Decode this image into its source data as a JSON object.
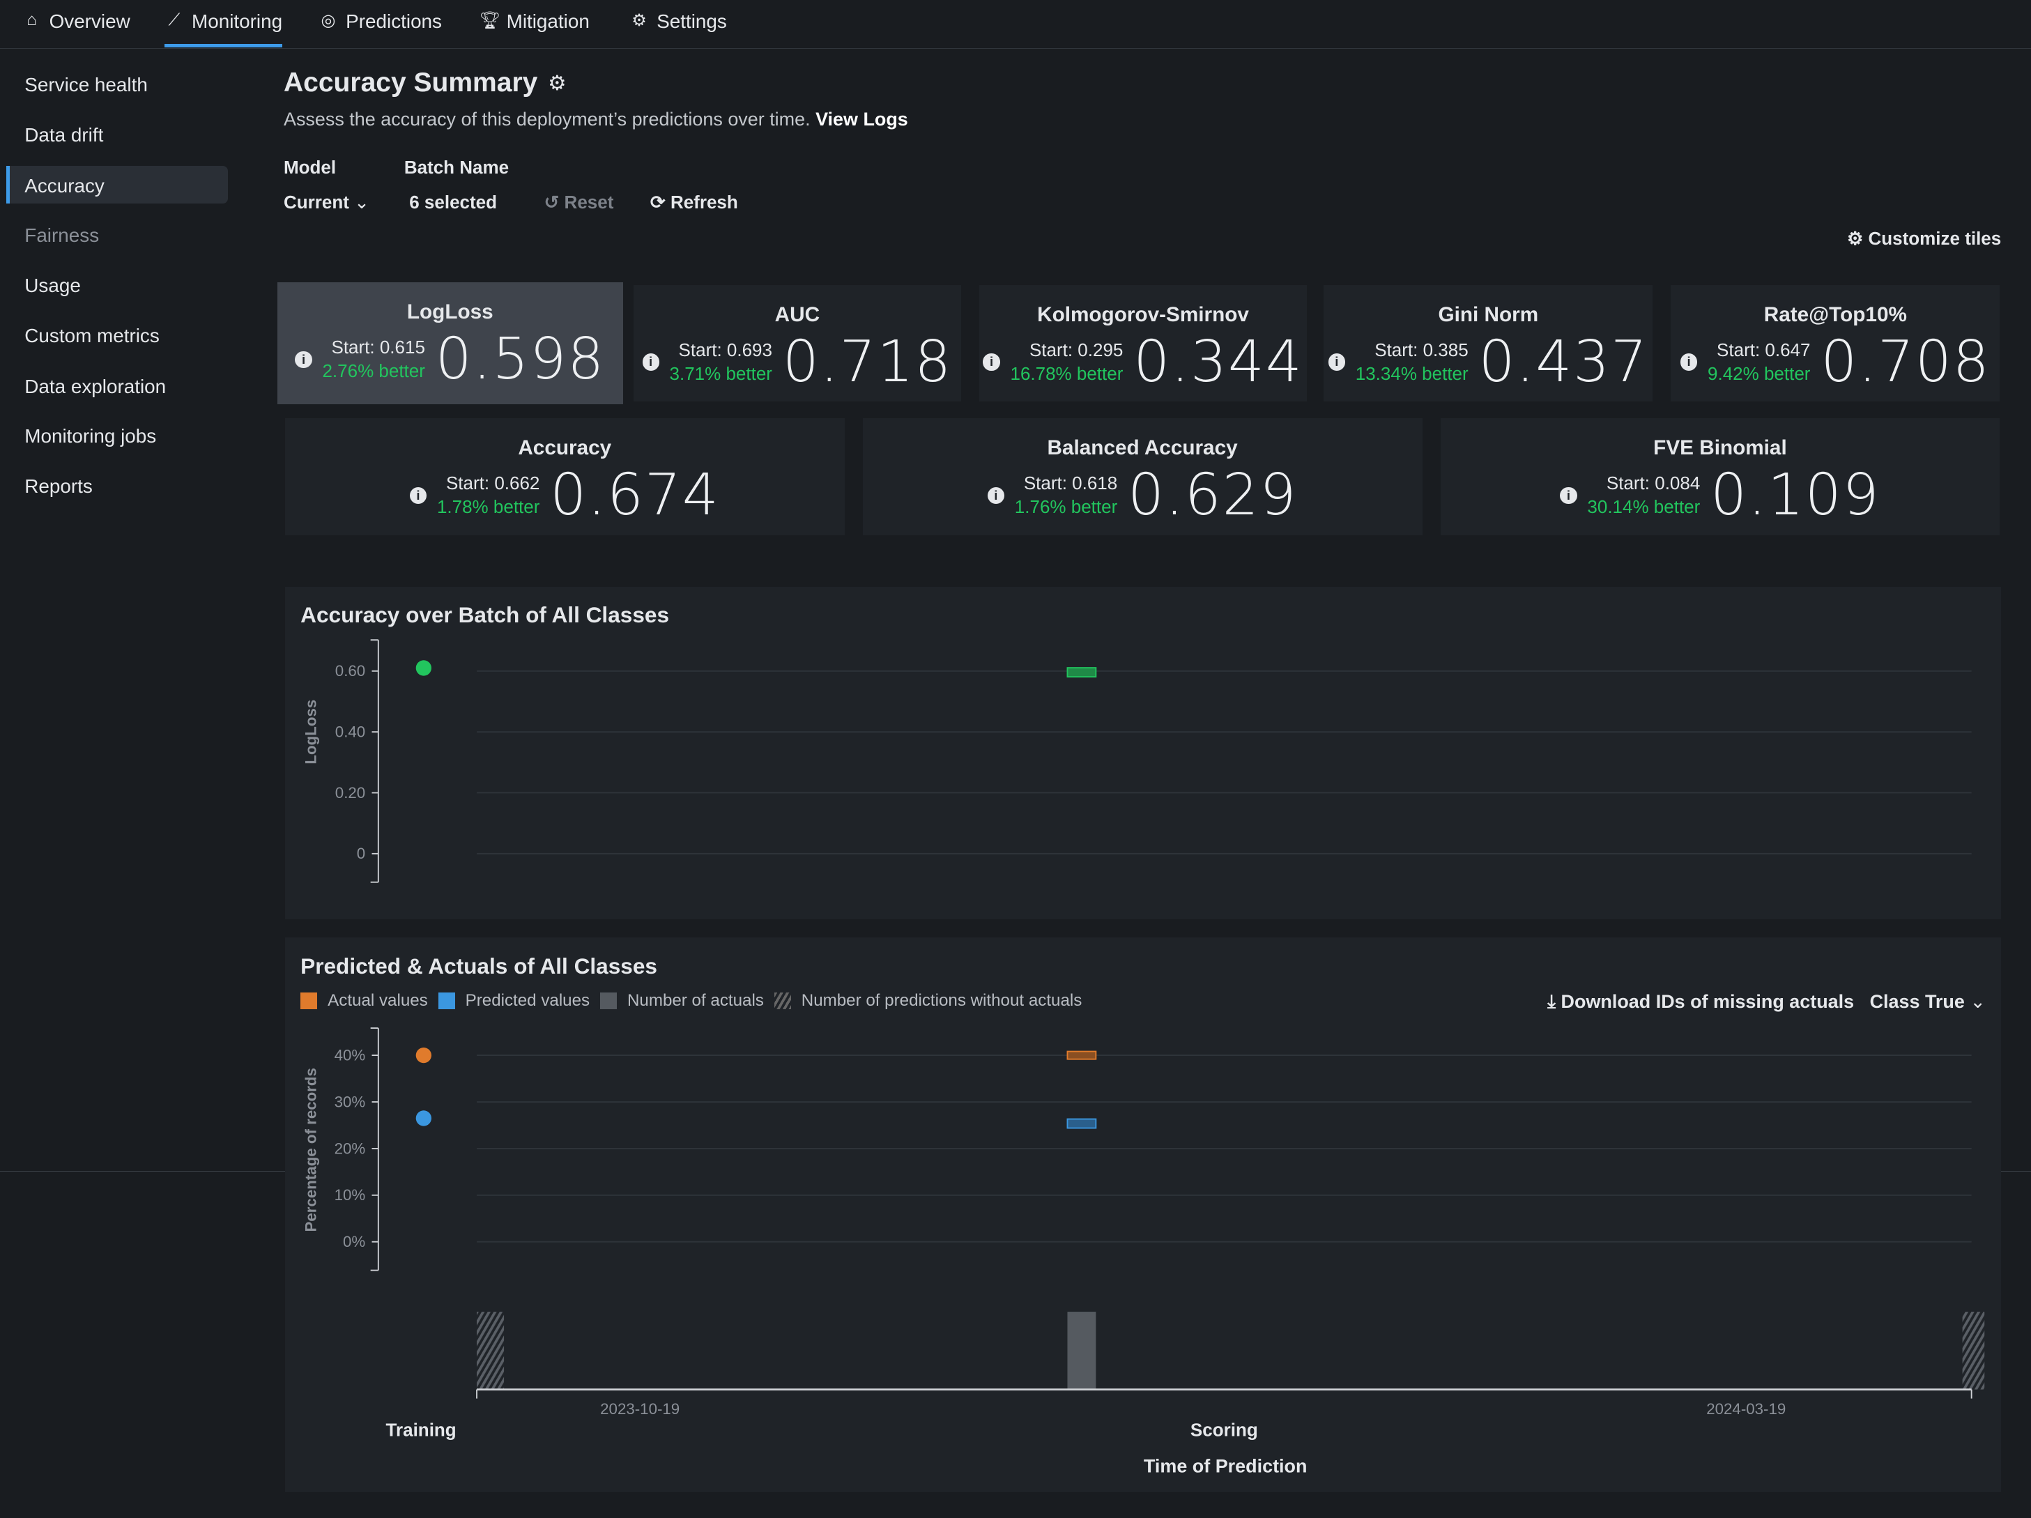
{
  "nav": {
    "tabs": [
      {
        "label": "Overview",
        "icon": "home-icon"
      },
      {
        "label": "Monitoring",
        "icon": "chart-line-icon"
      },
      {
        "label": "Predictions",
        "icon": "predictions-icon"
      },
      {
        "label": "Mitigation",
        "icon": "trophy-icon"
      },
      {
        "label": "Settings",
        "icon": "gear-icon"
      }
    ],
    "active": "Monitoring"
  },
  "sidebar": {
    "items": [
      {
        "label": "Service health"
      },
      {
        "label": "Data drift"
      },
      {
        "label": "Accuracy"
      },
      {
        "label": "Fairness"
      },
      {
        "label": "Usage"
      },
      {
        "label": "Custom metrics"
      },
      {
        "label": "Data exploration"
      },
      {
        "label": "Monitoring jobs"
      },
      {
        "label": "Reports"
      }
    ],
    "selected": "Accuracy"
  },
  "header": {
    "title": "Accuracy Summary",
    "subtitle": "Assess the accuracy of this deployment’s predictions over time.",
    "view_logs": "View Logs"
  },
  "filters": {
    "model_label": "Model",
    "model_value": "Current",
    "batch_label": "Batch Name",
    "batch_value": "6 selected",
    "reset": "Reset",
    "refresh": "Refresh",
    "customize": "Customize tiles"
  },
  "tiles": [
    {
      "name": "LogLoss",
      "start": "Start: 0.615",
      "change": "2.76% better",
      "value": "0.598"
    },
    {
      "name": "AUC",
      "start": "Start: 0.693",
      "change": "3.71% better",
      "value": "0.718"
    },
    {
      "name": "Kolmogorov-Smirnov",
      "start": "Start: 0.295",
      "change": "16.78% better",
      "value": "0.344"
    },
    {
      "name": "Gini Norm",
      "start": "Start: 0.385",
      "change": "13.34% better",
      "value": "0.437"
    },
    {
      "name": "Rate@Top10%",
      "start": "Start: 0.647",
      "change": "9.42% better",
      "value": "0.708"
    },
    {
      "name": "Accuracy",
      "start": "Start: 0.662",
      "change": "1.78% better",
      "value": "0.674"
    },
    {
      "name": "Balanced Accuracy",
      "start": "Start: 0.618",
      "change": "1.76% better",
      "value": "0.629"
    },
    {
      "name": "FVE Binomial",
      "start": "Start: 0.084",
      "change": "30.14% better",
      "value": "0.109"
    }
  ],
  "colors": {
    "accent": "#3d9be9",
    "green": "#22c55e",
    "orange": "#e07b2c",
    "blue": "#3b97e0",
    "gray": "#555a60"
  },
  "chart_data": [
    {
      "type": "scatter",
      "title": "Accuracy over Batch of All Classes",
      "ylabel": "LogLoss",
      "yticks": [
        "0",
        "0.20",
        "0.40",
        "0.60"
      ],
      "ytick_values": [
        0,
        0.2,
        0.4,
        0.6
      ],
      "ylim": [
        -0.1,
        0.7
      ],
      "series": [
        {
          "name": "Training",
          "x": "Training",
          "y": 0.61
        },
        {
          "name": "Scoring",
          "x": "Scoring",
          "y": 0.598
        }
      ]
    },
    {
      "type": "scatter",
      "title": "Predicted & Actuals of All Classes",
      "legend": [
        "Actual values",
        "Predicted values",
        "Number of actuals",
        "Number of predictions without actuals"
      ],
      "download": "Download IDs of missing actuals",
      "class_select": "Class True",
      "ylabel": "Percentage of records",
      "yticks": [
        "0%",
        "10%",
        "20%",
        "30%",
        "40%"
      ],
      "ytick_values": [
        0,
        10,
        20,
        30,
        40
      ],
      "ylim": [
        -6,
        46
      ],
      "series": [
        {
          "name": "Actual values",
          "training": 40,
          "scoring": 40
        },
        {
          "name": "Predicted values",
          "training": 26.5,
          "scoring": 25.5
        }
      ],
      "xticks": [
        "2023-10-19",
        "2024-03-19"
      ],
      "groups": [
        "Training",
        "Scoring"
      ],
      "xlabel": "Time of Prediction"
    }
  ]
}
